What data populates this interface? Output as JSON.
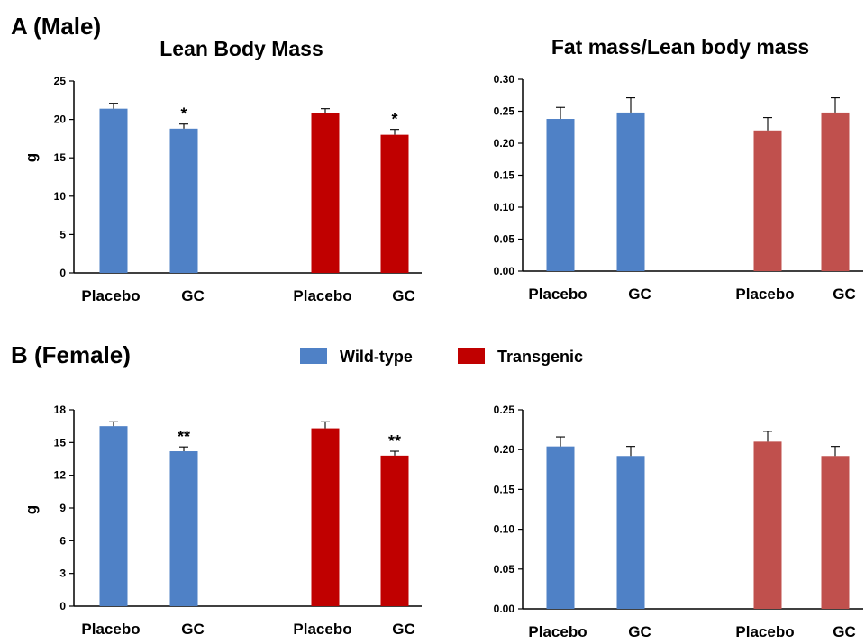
{
  "panels": {
    "a_label": "A (Male)",
    "b_label": "B (Female)"
  },
  "legend": {
    "items": [
      {
        "label": "Wild-type",
        "color": "#4f81c6"
      },
      {
        "label": "Transgenic",
        "color": "#c00000"
      }
    ]
  },
  "chart_data": [
    {
      "type": "bar",
      "title": "Lean Body Mass",
      "ylabel": "g",
      "ylim": [
        0,
        25
      ],
      "yticks": [
        0,
        5,
        10,
        15,
        20,
        25
      ],
      "categories": [
        "Placebo",
        "GC",
        "Placebo",
        "GC"
      ],
      "values": [
        21.4,
        18.8,
        20.8,
        18.0
      ],
      "errors": [
        0.7,
        0.6,
        0.6,
        0.7
      ],
      "annotations": [
        "",
        "*",
        "",
        "*"
      ],
      "colors": [
        "#4f81c6",
        "#4f81c6",
        "#c00000",
        "#c00000"
      ]
    },
    {
      "type": "bar",
      "title": "Fat mass/Lean body mass",
      "ylabel": "",
      "ylim": [
        0,
        0.3
      ],
      "yticks": [
        "0.00",
        "0.05",
        "0.10",
        "0.15",
        "0.20",
        "0.25",
        "0.30"
      ],
      "categories": [
        "Placebo",
        "GC",
        "Placebo",
        "GC"
      ],
      "values": [
        0.238,
        0.248,
        0.22,
        0.248
      ],
      "errors": [
        0.018,
        0.023,
        0.02,
        0.023
      ],
      "annotations": [
        "",
        "",
        "",
        ""
      ],
      "colors": [
        "#4f81c6",
        "#4f81c6",
        "#c0504d",
        "#c0504d"
      ]
    },
    {
      "type": "bar",
      "title": "",
      "ylabel": "g",
      "ylim": [
        0,
        18
      ],
      "yticks": [
        0,
        3,
        6,
        9,
        12,
        15,
        18
      ],
      "categories": [
        "Placebo",
        "GC",
        "Placebo",
        "GC"
      ],
      "values": [
        16.5,
        14.2,
        16.3,
        13.8
      ],
      "errors": [
        0.4,
        0.4,
        0.6,
        0.4
      ],
      "annotations": [
        "",
        "**",
        "",
        "**"
      ],
      "colors": [
        "#4f81c6",
        "#4f81c6",
        "#c00000",
        "#c00000"
      ]
    },
    {
      "type": "bar",
      "title": "",
      "ylabel": "",
      "ylim": [
        0,
        0.25
      ],
      "yticks": [
        "0.00",
        "0.05",
        "0.10",
        "0.15",
        "0.20",
        "0.25"
      ],
      "categories": [
        "Placebo",
        "GC",
        "Placebo",
        "GC"
      ],
      "values": [
        0.204,
        0.192,
        0.21,
        0.192
      ],
      "errors": [
        0.012,
        0.012,
        0.013,
        0.012
      ],
      "annotations": [
        "",
        "",
        "",
        ""
      ],
      "colors": [
        "#4f81c6",
        "#4f81c6",
        "#c0504d",
        "#c0504d"
      ]
    }
  ]
}
